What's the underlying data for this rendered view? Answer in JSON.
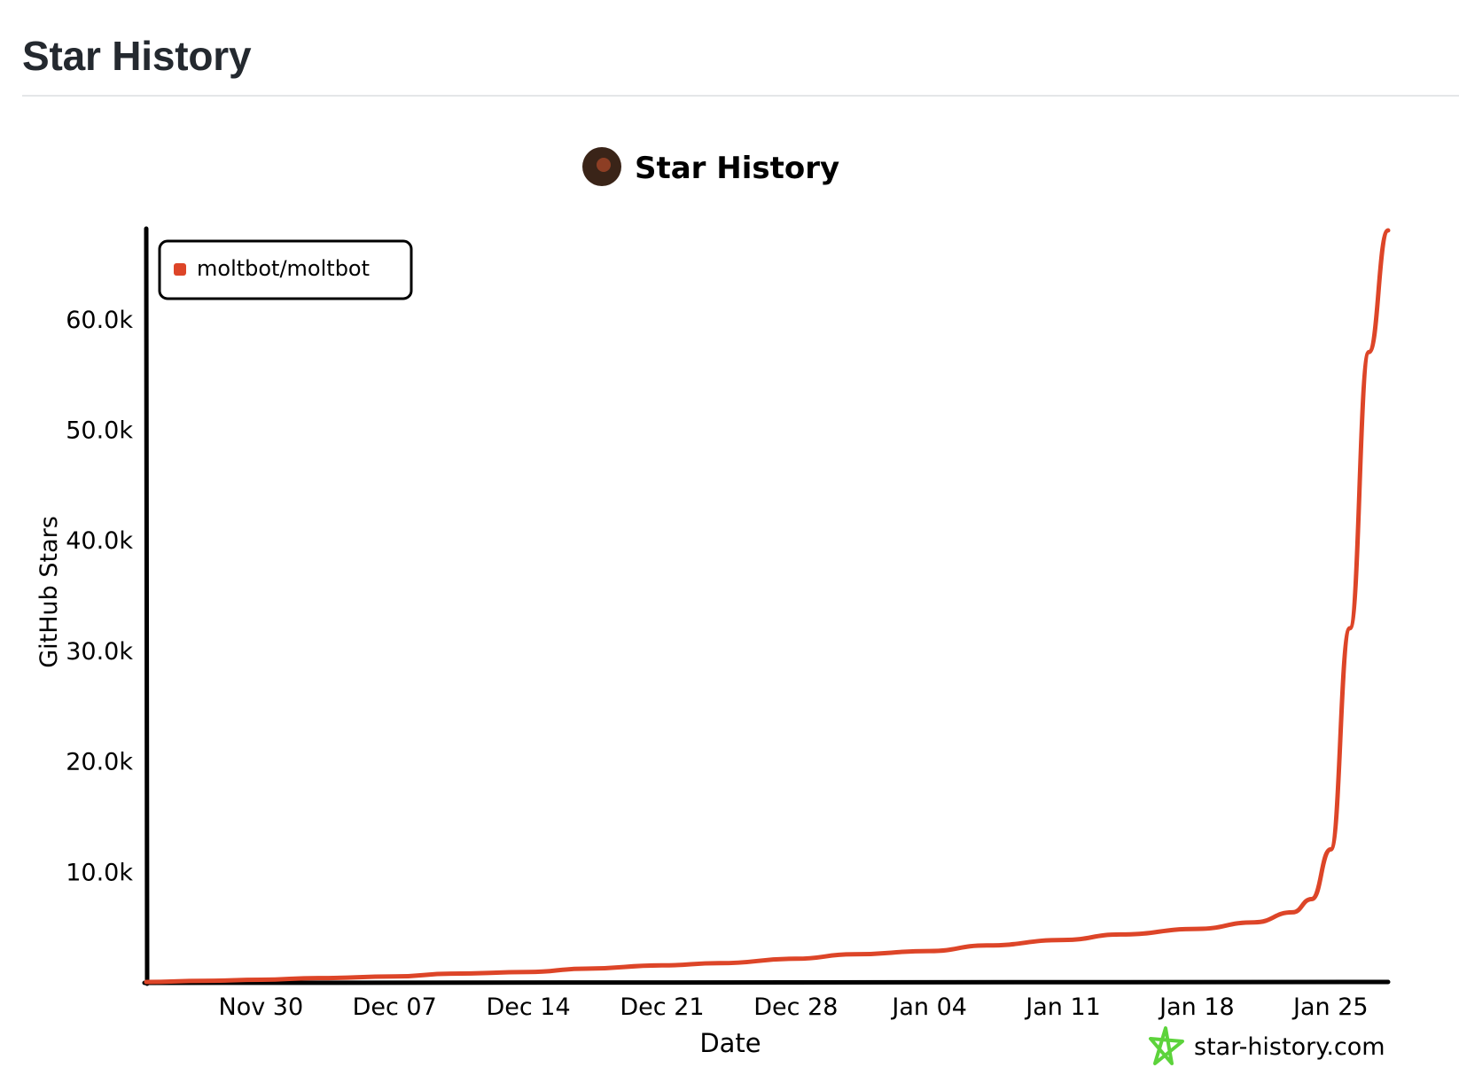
{
  "page": {
    "title": "Star History"
  },
  "chart_data": {
    "type": "line",
    "title": "Star History",
    "xlabel": "Date",
    "ylabel": "GitHub Stars",
    "xlim": [
      "2025-11-24",
      "2026-01-28"
    ],
    "ylim": [
      0,
      68000
    ],
    "x_ticks": [
      "Nov 30",
      "Dec 07",
      "Dec 14",
      "Dec 21",
      "Dec 28",
      "Jan 04",
      "Jan 11",
      "Jan 18",
      "Jan 25"
    ],
    "x_tick_dates": [
      "2025-11-30",
      "2025-12-07",
      "2025-12-14",
      "2025-12-21",
      "2025-12-28",
      "2026-01-04",
      "2026-01-11",
      "2026-01-18",
      "2026-01-25"
    ],
    "y_ticks": [
      {
        "value": 10000,
        "label": "10.0k"
      },
      {
        "value": 20000,
        "label": "20.0k"
      },
      {
        "value": 30000,
        "label": "30.0k"
      },
      {
        "value": 40000,
        "label": "40.0k"
      },
      {
        "value": 50000,
        "label": "50.0k"
      },
      {
        "value": 60000,
        "label": "60.0k"
      }
    ],
    "grid": false,
    "legend_position": "top-left",
    "series": [
      {
        "name": "moltbot/moltbot",
        "color": "#dd4528",
        "points": [
          {
            "x": "2025-11-24",
            "y": 0
          },
          {
            "x": "2025-11-27",
            "y": 100
          },
          {
            "x": "2025-11-30",
            "y": 200
          },
          {
            "x": "2025-12-03",
            "y": 350
          },
          {
            "x": "2025-12-07",
            "y": 500
          },
          {
            "x": "2025-12-10",
            "y": 750
          },
          {
            "x": "2025-12-14",
            "y": 900
          },
          {
            "x": "2025-12-17",
            "y": 1200
          },
          {
            "x": "2025-12-21",
            "y": 1500
          },
          {
            "x": "2025-12-24",
            "y": 1700
          },
          {
            "x": "2025-12-28",
            "y": 2100
          },
          {
            "x": "2025-12-31",
            "y": 2500
          },
          {
            "x": "2026-01-04",
            "y": 2800
          },
          {
            "x": "2026-01-07",
            "y": 3300
          },
          {
            "x": "2026-01-11",
            "y": 3800
          },
          {
            "x": "2026-01-14",
            "y": 4300
          },
          {
            "x": "2026-01-18",
            "y": 4800
          },
          {
            "x": "2026-01-21",
            "y": 5400
          },
          {
            "x": "2026-01-23",
            "y": 6300
          },
          {
            "x": "2026-01-24",
            "y": 7500
          },
          {
            "x": "2026-01-25",
            "y": 12000
          },
          {
            "x": "2026-01-26",
            "y": 32000
          },
          {
            "x": "2026-01-27",
            "y": 57000
          },
          {
            "x": "2026-01-28",
            "y": 68000
          }
        ]
      }
    ],
    "watermark": "star-history.com",
    "colors": {
      "axis": "#000000",
      "watermark_icon": "#5cd33b"
    }
  }
}
